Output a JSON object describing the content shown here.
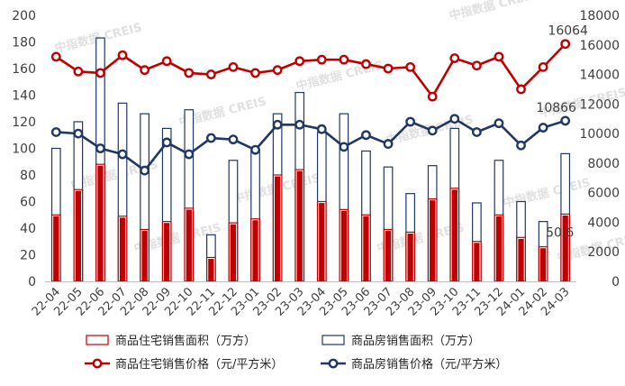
{
  "chart_data": {
    "type": "bar",
    "categories": [
      "22-04",
      "22-05",
      "22-06",
      "22-07",
      "22-08",
      "22-09",
      "22-10",
      "22-11",
      "22-12",
      "23-01",
      "23-02",
      "23-03",
      "23-04",
      "23-05",
      "23-06",
      "23-07",
      "23-08",
      "23-09",
      "23-10",
      "23-11",
      "23-12",
      "24-01",
      "24-02",
      "24-03"
    ],
    "y_left": {
      "ylim": [
        0,
        200
      ],
      "ticks": [
        "0",
        "20",
        "40",
        "60",
        "80",
        "100",
        "120",
        "140",
        "160",
        "180",
        "200"
      ]
    },
    "y_right": {
      "ylim": [
        0,
        18000
      ],
      "ticks": [
        "0",
        "2000",
        "4000",
        "6000",
        "8000",
        "10000",
        "12000",
        "14000",
        "16000",
        "18000"
      ]
    },
    "series": [
      {
        "name": "商品住宅销售面积（万方）",
        "type": "bar",
        "axis": "left",
        "color": "#c00000",
        "values": [
          50,
          69,
          88,
          49,
          39,
          45,
          55,
          18,
          44,
          47,
          80,
          84,
          60,
          54,
          50,
          39,
          37,
          62,
          70,
          30,
          50,
          33,
          26,
          50.6
        ]
      },
      {
        "name": "商品房销售面积（万方）",
        "type": "bar",
        "axis": "left",
        "color": "#1f3864",
        "values": [
          100,
          120,
          183,
          134,
          126,
          115,
          129,
          35,
          91,
          98,
          126,
          142,
          112,
          126,
          98,
          86,
          66,
          87,
          115,
          59,
          91,
          60,
          45,
          96
        ]
      },
      {
        "name": "商品住宅销售价格（元/平方米）",
        "type": "line",
        "axis": "right",
        "color": "#c00000",
        "values": [
          15200,
          14200,
          14100,
          15300,
          14300,
          14900,
          14100,
          14000,
          14500,
          14100,
          14300,
          14900,
          15000,
          15000,
          14700,
          14400,
          14500,
          12500,
          15100,
          14600,
          15200,
          13000,
          14500,
          16064
        ]
      },
      {
        "name": "商品房销售价格（元/平方米）",
        "type": "line",
        "axis": "right",
        "color": "#1f3864",
        "values": [
          10100,
          10000,
          9000,
          8600,
          7500,
          9400,
          8600,
          9700,
          9600,
          8900,
          10600,
          10600,
          10300,
          9100,
          9900,
          9300,
          10800,
          10200,
          11000,
          10100,
          10700,
          9200,
          10400,
          10866
        ]
      }
    ],
    "data_labels": {
      "bar_last": "50.6",
      "price_res_last": "16064",
      "price_all_last": "10866"
    },
    "legend_position": "bottom",
    "watermark": "中指数据 CREIS",
    "grid": false
  }
}
